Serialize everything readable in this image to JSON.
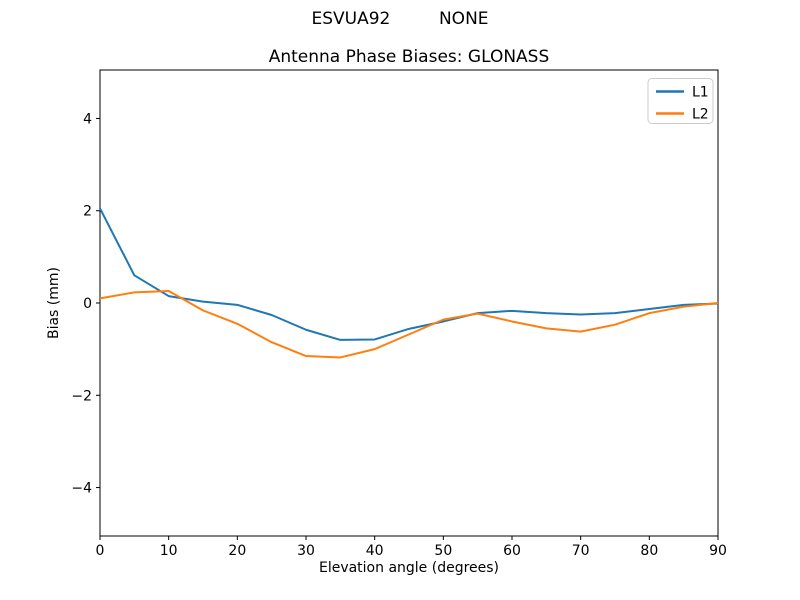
{
  "chart_data": {
    "type": "line",
    "suptitle": "ESVUA92         NONE",
    "title": "Antenna Phase Biases: GLONASS",
    "xlabel": "Elevation angle (degrees)",
    "ylabel": "Bias (mm)",
    "xlim": [
      0,
      90
    ],
    "ylim": [
      -5.05,
      5.05
    ],
    "xticks": [
      0,
      10,
      20,
      30,
      40,
      50,
      60,
      70,
      80,
      90
    ],
    "xtick_labels": [
      "0",
      "10",
      "20",
      "30",
      "40",
      "50",
      "60",
      "70",
      "80",
      "90"
    ],
    "yticks": [
      -4,
      -2,
      0,
      2,
      4
    ],
    "ytick_labels": [
      "−4",
      "−2",
      "0",
      "2",
      "4"
    ],
    "grid": false,
    "legend_position": "upper right",
    "axis_color": "#000000",
    "x": [
      0,
      5,
      10,
      15,
      20,
      25,
      30,
      35,
      40,
      45,
      50,
      55,
      60,
      65,
      70,
      75,
      80,
      85,
      90
    ],
    "series": [
      {
        "name": "L1",
        "color": "#1f77b4",
        "values": [
          2.05,
          0.6,
          0.15,
          0.03,
          -0.04,
          -0.26,
          -0.58,
          -0.8,
          -0.79,
          -0.56,
          -0.4,
          -0.22,
          -0.17,
          -0.22,
          -0.25,
          -0.22,
          -0.13,
          -0.04,
          -0.01
        ]
      },
      {
        "name": "L2",
        "color": "#ff7f0e",
        "values": [
          0.1,
          0.23,
          0.26,
          -0.16,
          -0.45,
          -0.85,
          -1.15,
          -1.18,
          -1.0,
          -0.68,
          -0.36,
          -0.23,
          -0.4,
          -0.55,
          -0.62,
          -0.47,
          -0.22,
          -0.08,
          0.0
        ]
      }
    ]
  }
}
